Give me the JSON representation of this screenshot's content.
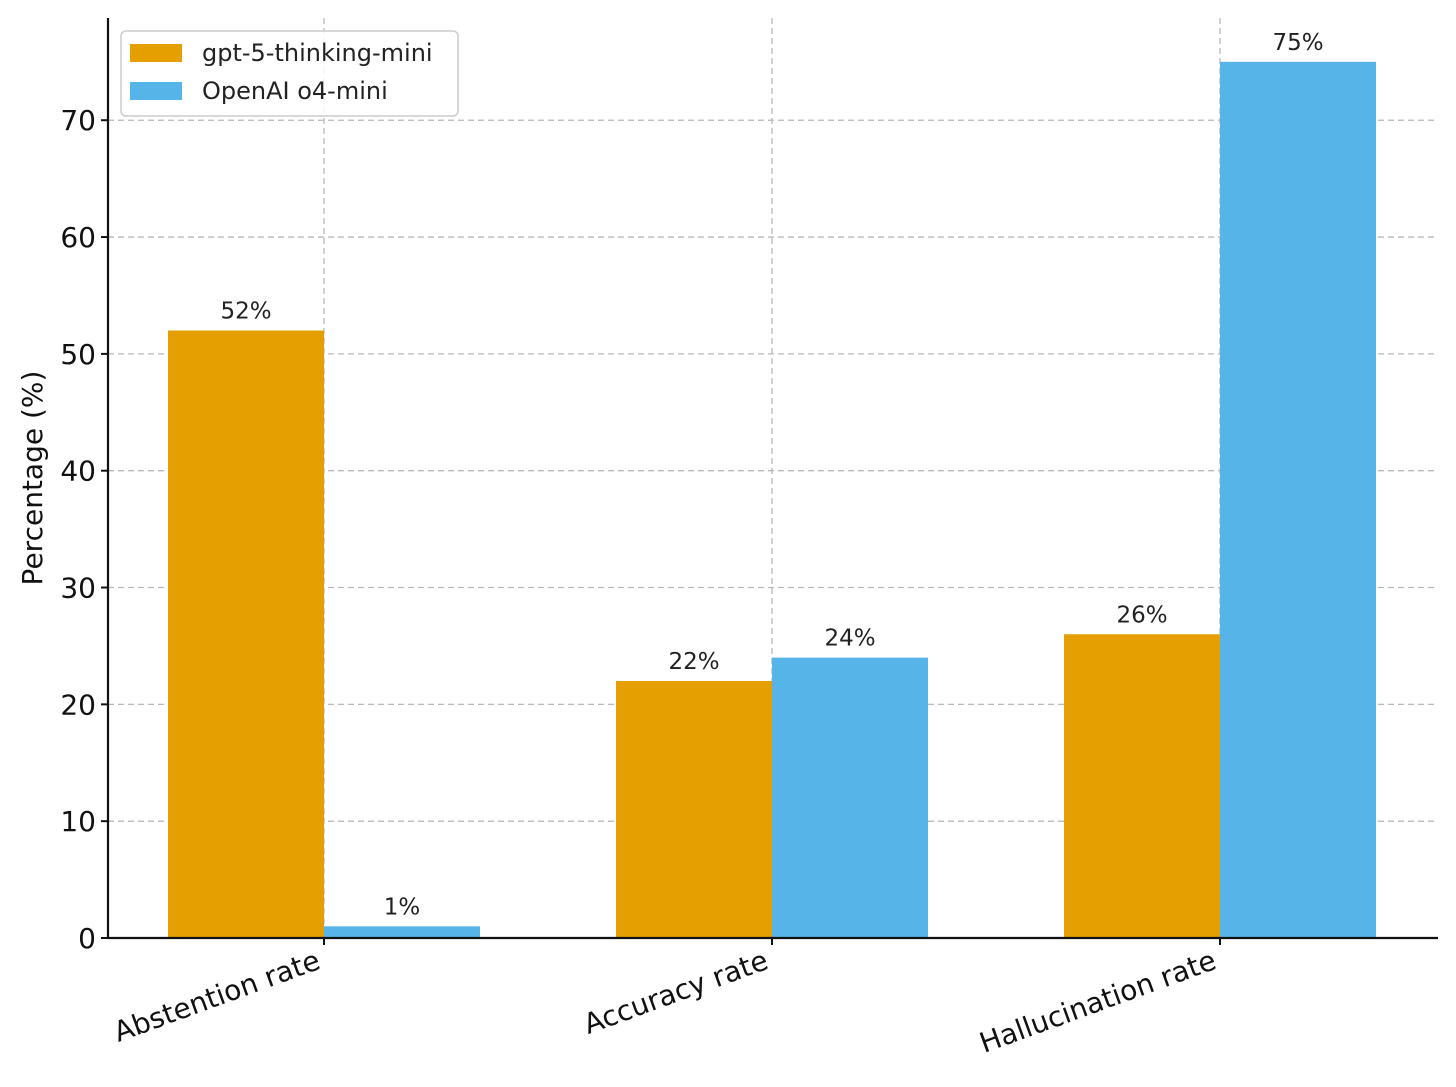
{
  "chart_data": {
    "type": "bar",
    "title": "",
    "xlabel": "",
    "ylabel": "Percentage (%)",
    "categories": [
      "Abstention rate",
      "Accuracy rate",
      "Hallucination rate"
    ],
    "series": [
      {
        "name": "gpt-5-thinking-mini",
        "values": [
          52,
          22,
          26
        ],
        "labels": [
          "52%",
          "22%",
          "26%"
        ],
        "color": "#E69F00"
      },
      {
        "name": "OpenAI o4-mini",
        "values": [
          1,
          24,
          75
        ],
        "labels": [
          "1%",
          "24%",
          "75%"
        ],
        "color": "#56B4E9"
      }
    ],
    "ylim": [
      0,
      78.75
    ],
    "yticks": [
      0,
      10,
      20,
      30,
      40,
      50,
      60,
      70
    ],
    "grid": true,
    "legend_position": "top-left",
    "x_tick_rotation": -20
  }
}
